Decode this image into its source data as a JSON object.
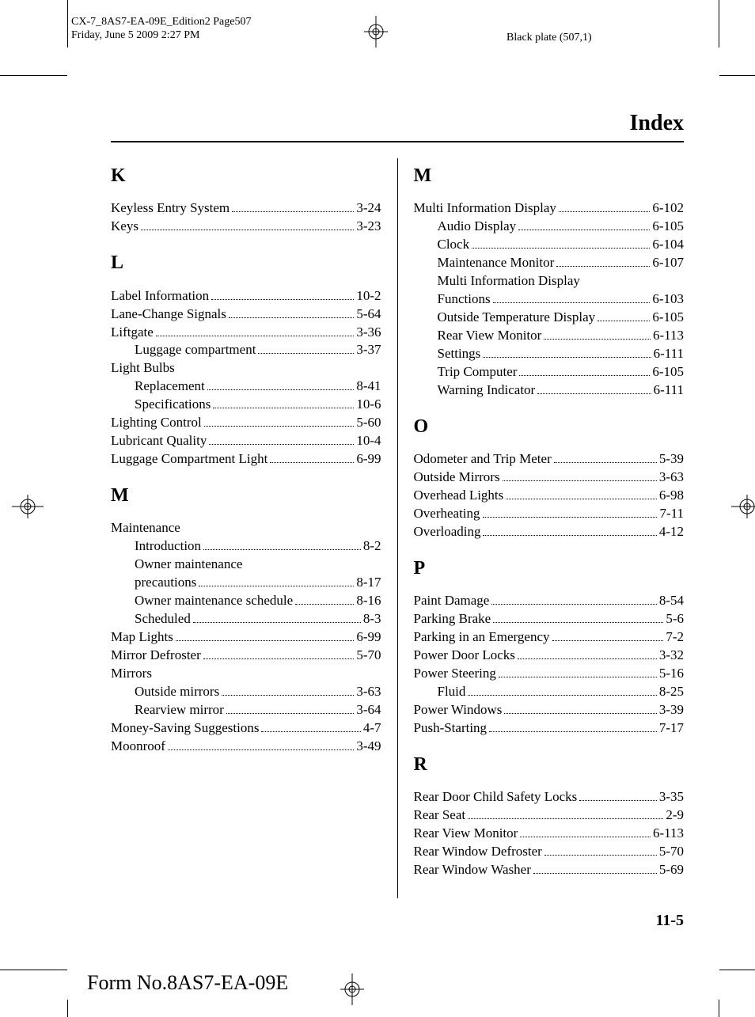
{
  "meta": {
    "doc_id": "CX-7_8AS7-EA-09E_Edition2 Page507",
    "timestamp": "Friday, June 5 2009 2:27 PM",
    "plate": "Black plate (507,1)"
  },
  "title": "Index",
  "page_number": "11-5",
  "form_no": "Form No.8AS7-EA-09E",
  "left": [
    {
      "type": "letter",
      "text": "K"
    },
    {
      "type": "entry",
      "label": "Keyless Entry System",
      "page": "3-24"
    },
    {
      "type": "entry",
      "label": "Keys",
      "page": "3-23"
    },
    {
      "type": "letter",
      "text": "L"
    },
    {
      "type": "entry",
      "label": "Label Information",
      "page": "10-2"
    },
    {
      "type": "entry",
      "label": "Lane-Change Signals",
      "page": "5-64"
    },
    {
      "type": "entry",
      "label": "Liftgate",
      "page": "3-36"
    },
    {
      "type": "entry",
      "sub": true,
      "label": "Luggage compartment",
      "page": "3-37"
    },
    {
      "type": "plain",
      "label": "Light Bulbs"
    },
    {
      "type": "entry",
      "sub": true,
      "label": "Replacement",
      "page": "8-41"
    },
    {
      "type": "entry",
      "sub": true,
      "label": "Specifications",
      "page": "10-6"
    },
    {
      "type": "entry",
      "label": "Lighting Control",
      "page": "5-60"
    },
    {
      "type": "entry",
      "label": "Lubricant Quality",
      "page": "10-4"
    },
    {
      "type": "entry",
      "label": "Luggage Compartment Light",
      "page": "6-99"
    },
    {
      "type": "letter",
      "text": "M"
    },
    {
      "type": "plain",
      "label": "Maintenance"
    },
    {
      "type": "entry",
      "sub": true,
      "label": "Introduction",
      "page": "8-2"
    },
    {
      "type": "plain",
      "sub": true,
      "label": "Owner maintenance"
    },
    {
      "type": "entry",
      "sub": true,
      "label": "precautions",
      "page": "8-17"
    },
    {
      "type": "entry",
      "sub": true,
      "label": "Owner maintenance schedule",
      "page": "8-16"
    },
    {
      "type": "entry",
      "sub": true,
      "label": "Scheduled",
      "page": "8-3"
    },
    {
      "type": "entry",
      "label": "Map Lights",
      "page": "6-99"
    },
    {
      "type": "entry",
      "label": "Mirror Defroster",
      "page": "5-70"
    },
    {
      "type": "plain",
      "label": "Mirrors"
    },
    {
      "type": "entry",
      "sub": true,
      "label": "Outside mirrors",
      "page": "3-63"
    },
    {
      "type": "entry",
      "sub": true,
      "label": "Rearview mirror",
      "page": "3-64"
    },
    {
      "type": "entry",
      "label": "Money-Saving Suggestions",
      "page": "4-7"
    },
    {
      "type": "entry",
      "label": "Moonroof",
      "page": "3-49"
    }
  ],
  "right": [
    {
      "type": "letter",
      "text": "M"
    },
    {
      "type": "entry",
      "label": "Multi Information Display",
      "page": "6-102"
    },
    {
      "type": "entry",
      "sub": true,
      "label": "Audio Display",
      "page": "6-105"
    },
    {
      "type": "entry",
      "sub": true,
      "label": "Clock",
      "page": "6-104"
    },
    {
      "type": "entry",
      "sub": true,
      "label": "Maintenance Monitor",
      "page": "6-107"
    },
    {
      "type": "plain",
      "sub": true,
      "label": "Multi Information Display"
    },
    {
      "type": "entry",
      "sub": true,
      "label": "Functions",
      "page": "6-103"
    },
    {
      "type": "entry",
      "sub": true,
      "label": "Outside Temperature Display",
      "page": "6-105"
    },
    {
      "type": "entry",
      "sub": true,
      "label": "Rear View Monitor",
      "page": "6-113"
    },
    {
      "type": "entry",
      "sub": true,
      "label": "Settings",
      "page": "6-111"
    },
    {
      "type": "entry",
      "sub": true,
      "label": "Trip Computer",
      "page": "6-105"
    },
    {
      "type": "entry",
      "sub": true,
      "label": "Warning Indicator",
      "page": "6-111"
    },
    {
      "type": "letter",
      "text": "O"
    },
    {
      "type": "entry",
      "label": "Odometer and Trip Meter",
      "page": "5-39"
    },
    {
      "type": "entry",
      "label": "Outside Mirrors",
      "page": "3-63"
    },
    {
      "type": "entry",
      "label": "Overhead Lights",
      "page": "6-98"
    },
    {
      "type": "entry",
      "label": "Overheating",
      "page": "7-11"
    },
    {
      "type": "entry",
      "label": "Overloading",
      "page": "4-12"
    },
    {
      "type": "letter",
      "text": "P"
    },
    {
      "type": "entry",
      "label": "Paint Damage",
      "page": "8-54"
    },
    {
      "type": "entry",
      "label": "Parking Brake",
      "page": "5-6"
    },
    {
      "type": "entry",
      "label": "Parking in an Emergency",
      "page": "7-2"
    },
    {
      "type": "entry",
      "label": "Power Door Locks",
      "page": "3-32"
    },
    {
      "type": "entry",
      "label": "Power Steering",
      "page": "5-16"
    },
    {
      "type": "entry",
      "sub": true,
      "label": "Fluid",
      "page": "8-25"
    },
    {
      "type": "entry",
      "label": "Power Windows",
      "page": "3-39"
    },
    {
      "type": "entry",
      "label": "Push-Starting",
      "page": "7-17"
    },
    {
      "type": "letter",
      "text": "R"
    },
    {
      "type": "entry",
      "label": "Rear Door Child Safety Locks",
      "page": "3-35"
    },
    {
      "type": "entry",
      "label": "Rear Seat",
      "page": "2-9"
    },
    {
      "type": "entry",
      "label": "Rear View Monitor",
      "page": "6-113"
    },
    {
      "type": "entry",
      "label": "Rear Window Defroster",
      "page": "5-70"
    },
    {
      "type": "entry",
      "label": "Rear Window Washer",
      "page": "5-69"
    }
  ]
}
